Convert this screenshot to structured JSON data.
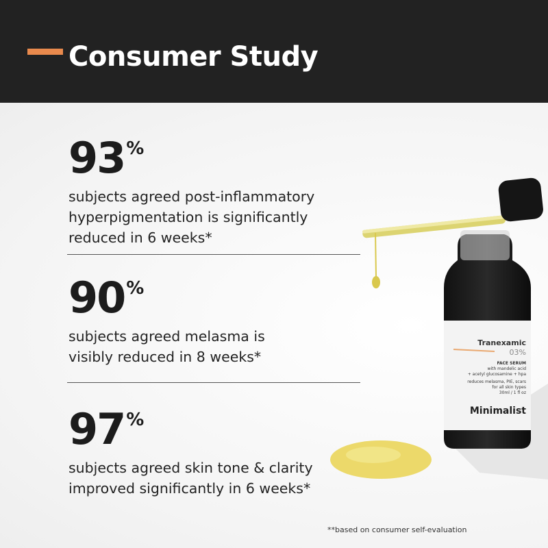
{
  "header": {
    "title": "Consumer Study",
    "accent_color": "#e98a4d",
    "background": "#222222"
  },
  "stats": [
    {
      "value": "93",
      "unit": "%",
      "description_lines": [
        "subjects agreed post-inflammatory",
        "hyperpigmentation is significantly",
        "reduced in 6 weeks*"
      ]
    },
    {
      "value": "90",
      "unit": "%",
      "description_lines": [
        "subjects agreed melasma is",
        "visibly reduced in 8 weeks*"
      ]
    },
    {
      "value": "97",
      "unit": "%",
      "description_lines": [
        "subjects agreed skin tone & clarity",
        "improved significantly in 6 weeks*"
      ]
    }
  ],
  "footnote": "**based on consumer self-evaluation",
  "product": {
    "name": "Tranexamic",
    "strength": "03%",
    "type": "FACE SERUM",
    "ingredients_1": "with mandelic acid",
    "ingredients_2": "+ acetyl glucosamine + hpa",
    "claim": "reduces melasma, PIE, scars",
    "skin": "for all skin types",
    "volume": "30ml / 1 fl oz",
    "brand": "Minimalist"
  }
}
